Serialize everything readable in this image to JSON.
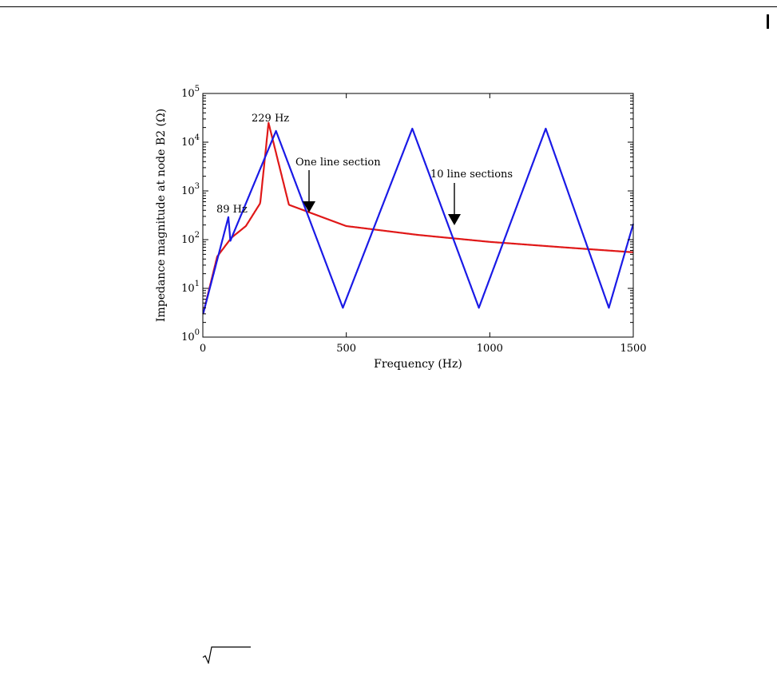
{
  "chart_data": {
    "type": "line",
    "title": "",
    "xlabel": "Frequency (Hz)",
    "ylabel": "Impedance magnitude at node B2 (Ω)",
    "xlim": [
      0,
      1500
    ],
    "ylim_log10": [
      0,
      5
    ],
    "yscale": "log",
    "grid": false,
    "x_ticks": [
      0,
      500,
      1000,
      1500
    ],
    "y_tick_exponents": [
      0,
      1,
      2,
      3,
      4,
      5
    ],
    "y_tick_base": "10",
    "series": [
      {
        "color": "#e01818",
        "model": "single_resonance",
        "f0": 229,
        "x": [
          1,
          50,
          100,
          150,
          200,
          229,
          300,
          500,
          750,
          1000,
          1250,
          1500
        ],
        "y": [
          3,
          45,
          110,
          190,
          560,
          25000,
          520,
          190,
          125,
          90,
          70,
          55
        ]
      },
      {
        "color": "#1a1ae6",
        "model": "multi_resonance",
        "peaks": [
          89,
          255,
          730,
          1195
        ],
        "notches": [
          96,
          488,
          962,
          1415
        ],
        "x": [
          1,
          89,
          96,
          255,
          488,
          730,
          962,
          1195,
          1415,
          1500
        ],
        "y": [
          3,
          290,
          95,
          17000,
          4,
          19000,
          4,
          19000,
          4,
          210
        ]
      }
    ],
    "annotations": [
      {
        "text": "229 Hz"
      },
      {
        "text": "89 Hz"
      },
      {
        "text": "One line section"
      },
      {
        "text": "10 line sections"
      }
    ]
  }
}
